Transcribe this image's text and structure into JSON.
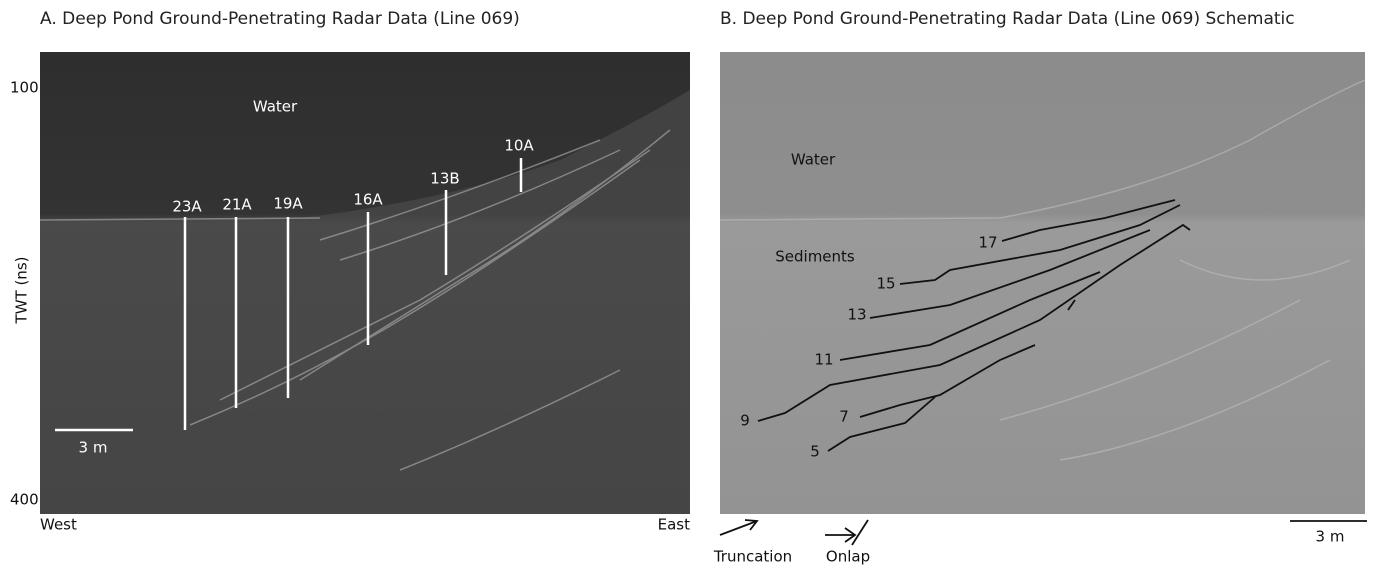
{
  "panel_a": {
    "title": "A. Deep Pond Ground-Penetrating Radar Data (Line 069)",
    "y_axis": {
      "label": "TWT (ns)",
      "ticks": [
        "100",
        "400"
      ]
    },
    "water_label": "Water",
    "west_label": "West",
    "east_label": "East",
    "scale_label": "3 m",
    "cores": [
      "23A",
      "21A",
      "19A",
      "16A",
      "13B",
      "10A"
    ]
  },
  "panel_b": {
    "title": "B. Deep Pond Ground-Penetrating Radar Data (Line 069) Schematic",
    "water_label": "Water",
    "sediments_label": "Sediments",
    "reflectors": [
      "17",
      "15",
      "13",
      "11",
      "9",
      "7",
      "5"
    ],
    "legend": {
      "truncation": "Truncation",
      "onlap": "Onlap"
    },
    "scale_label": "3 m"
  }
}
